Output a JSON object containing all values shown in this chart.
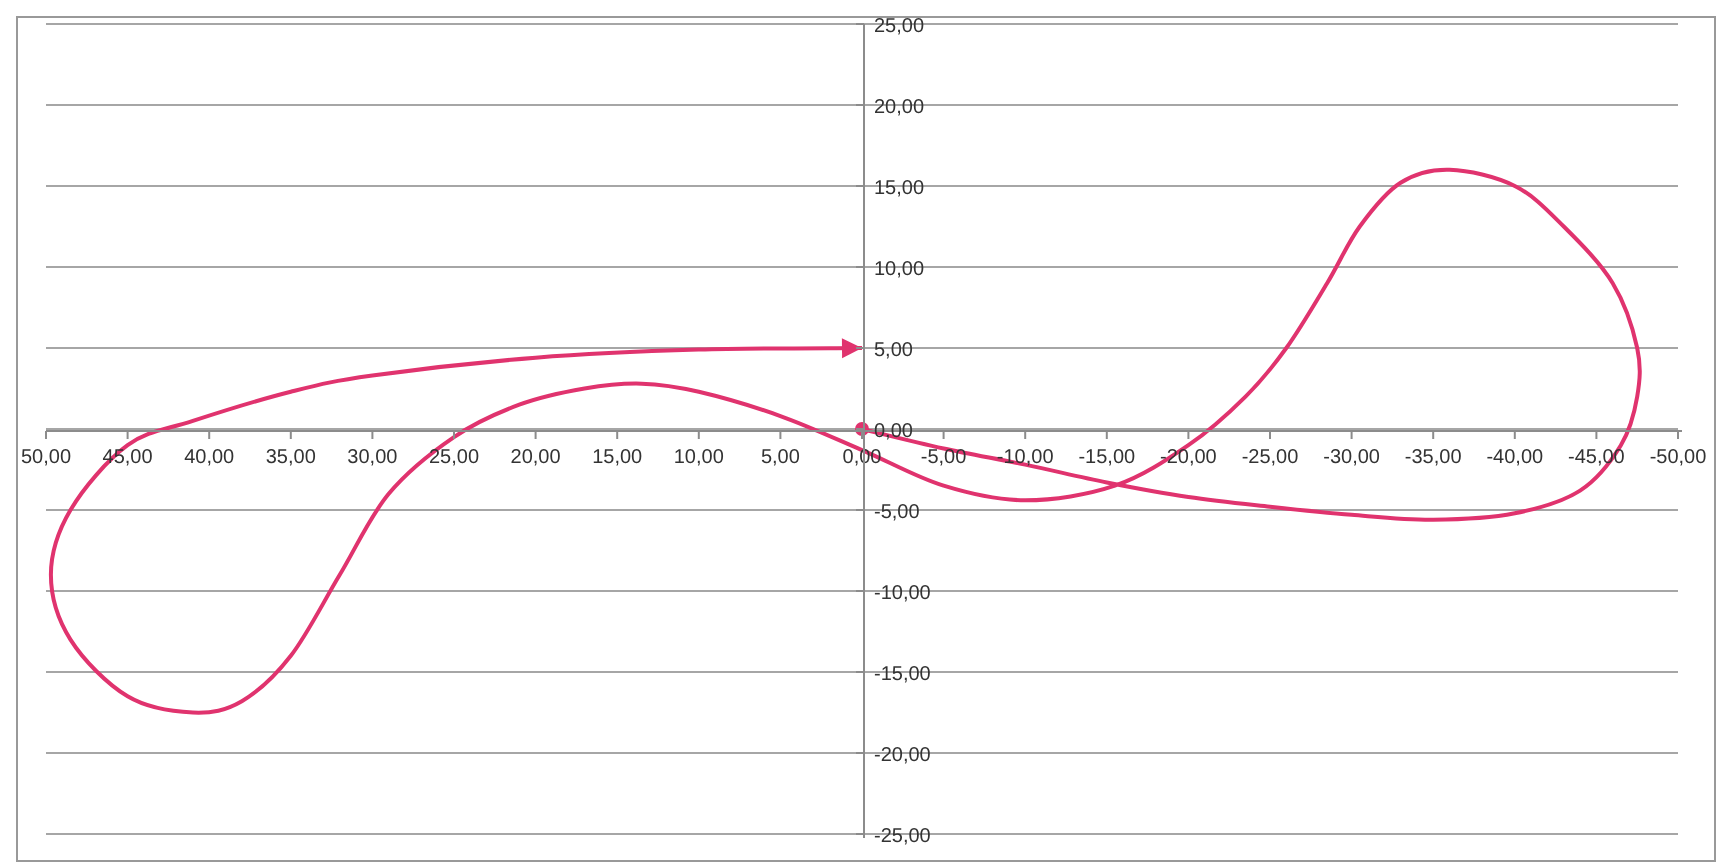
{
  "chart_data": {
    "type": "line",
    "line_style": "solid",
    "marker": "none",
    "grid": "y",
    "x": [
      0,
      -5,
      -10,
      -15,
      -20,
      -25,
      -30,
      -35,
      -40,
      -44,
      -46.5,
      -47.5,
      -47.5,
      -46,
      -43,
      -40,
      -36,
      -33,
      -30.5,
      -28.5,
      -26,
      -23.5,
      -20,
      -15.5,
      -10,
      -5,
      0,
      5,
      10,
      13.5,
      17,
      21,
      25,
      29,
      32,
      35,
      38,
      41,
      45,
      48.5,
      49.7,
      48.5,
      45,
      41,
      35,
      30,
      20,
      10,
      0
    ],
    "series": [
      {
        "color": "#e0336e",
        "values": [
          0,
          -1.2,
          -2.2,
          -3.3,
          -4.2,
          -4.8,
          -5.3,
          -5.6,
          -5.2,
          -3.8,
          -1,
          2,
          5,
          9,
          12.5,
          15,
          16,
          15.2,
          12.5,
          9,
          5,
          2,
          -1,
          -3.5,
          -4.4,
          -3.5,
          -1.3,
          0.8,
          2.3,
          2.8,
          2.5,
          1.5,
          -0.5,
          -4,
          -9,
          -14,
          -16.8,
          -17.5,
          -16.5,
          -13,
          -9,
          -5,
          -1,
          0.5,
          2.3,
          3.3,
          4.4,
          4.9,
          5
        ]
      }
    ],
    "xlim": [
      50,
      -50
    ],
    "xticks": [
      {
        "value": 50,
        "label": "50,00"
      },
      {
        "value": 45,
        "label": "45,00"
      },
      {
        "value": 40,
        "label": "40,00"
      },
      {
        "value": 35,
        "label": "35,00"
      },
      {
        "value": 30,
        "label": "30,00"
      },
      {
        "value": 25,
        "label": "25,00"
      },
      {
        "value": 20,
        "label": "20,00"
      },
      {
        "value": 15,
        "label": "15,00"
      },
      {
        "value": 10,
        "label": "10,00"
      },
      {
        "value": 5,
        "label": "5,00"
      },
      {
        "value": 0,
        "label": "0,00"
      },
      {
        "value": -5,
        "label": "-5,00"
      },
      {
        "value": -10,
        "label": "-10,00"
      },
      {
        "value": -15,
        "label": "-15,00"
      },
      {
        "value": -20,
        "label": "-20,00"
      },
      {
        "value": -25,
        "label": "-25,00"
      },
      {
        "value": -30,
        "label": "-30,00"
      },
      {
        "value": -35,
        "label": "-35,00"
      },
      {
        "value": -40,
        "label": "-40,00"
      },
      {
        "value": -45,
        "label": "-45,00"
      },
      {
        "value": -50,
        "label": "-50,00"
      }
    ],
    "ylim": [
      -25,
      25
    ],
    "yticks": [
      {
        "value": 25,
        "label": "25,00"
      },
      {
        "value": 20,
        "label": "20,00"
      },
      {
        "value": 15,
        "label": "15,00"
      },
      {
        "value": 10,
        "label": "10,00"
      },
      {
        "value": 5,
        "label": "5,00"
      },
      {
        "value": 0,
        "label": "0,00"
      },
      {
        "value": -5,
        "label": "-5,00"
      },
      {
        "value": -10,
        "label": "-10,00"
      },
      {
        "value": -15,
        "label": "-15,00"
      },
      {
        "value": -20,
        "label": "-20,00"
      },
      {
        "value": -25,
        "label": "-25,00"
      }
    ]
  }
}
